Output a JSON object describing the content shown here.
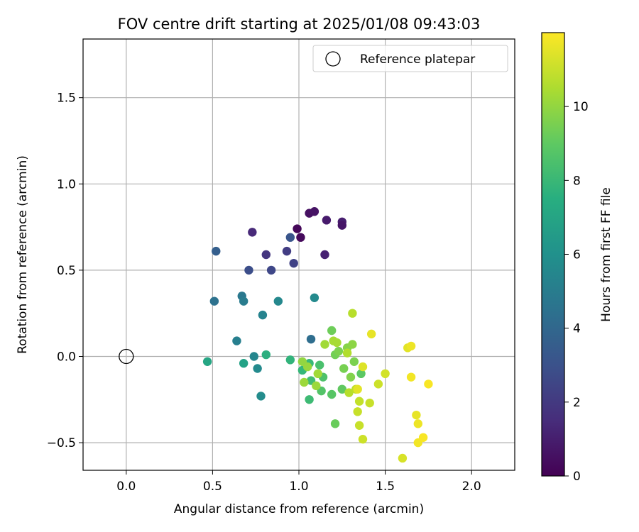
{
  "chart_data": {
    "type": "scatter",
    "title": "FOV centre drift starting at 2025/01/08 09:43:03",
    "xlabel": "Angular distance from reference (arcmin)",
    "ylabel": "Rotation from reference (arcmin)",
    "xlim": [
      -0.25,
      2.25
    ],
    "ylim": [
      -0.66,
      1.84
    ],
    "xticks": [
      0.0,
      0.5,
      1.0,
      1.5,
      2.0
    ],
    "xtick_labels": [
      "0.0",
      "0.5",
      "1.0",
      "1.5",
      "2.0"
    ],
    "yticks": [
      -0.5,
      0.0,
      0.5,
      1.0,
      1.5
    ],
    "ytick_labels": [
      "−0.5",
      "0.0",
      "0.5",
      "1.0",
      "1.5"
    ],
    "grid": true,
    "legend": {
      "position": "top-right",
      "entries": [
        "Reference platepar"
      ]
    },
    "reference_point": {
      "x": 0.0,
      "y": 0.0
    },
    "colorbar": {
      "label": "Hours from first FF file",
      "range": [
        0,
        12
      ],
      "ticks": [
        0,
        2,
        4,
        6,
        8,
        10
      ],
      "colormap": "viridis"
    },
    "points": [
      {
        "x": 0.99,
        "y": 0.74,
        "c": 0.2
      },
      {
        "x": 1.01,
        "y": 0.69,
        "c": 0.3
      },
      {
        "x": 1.06,
        "y": 0.83,
        "c": 0.5
      },
      {
        "x": 1.09,
        "y": 0.84,
        "c": 0.6
      },
      {
        "x": 1.16,
        "y": 0.79,
        "c": 0.9
      },
      {
        "x": 1.25,
        "y": 0.78,
        "c": 1.0
      },
      {
        "x": 1.25,
        "y": 0.76,
        "c": 0.7
      },
      {
        "x": 1.15,
        "y": 0.59,
        "c": 1.1
      },
      {
        "x": 0.73,
        "y": 0.72,
        "c": 1.4
      },
      {
        "x": 0.81,
        "y": 0.59,
        "c": 1.9
      },
      {
        "x": 0.93,
        "y": 0.61,
        "c": 2.2
      },
      {
        "x": 0.97,
        "y": 0.54,
        "c": 2.4
      },
      {
        "x": 0.84,
        "y": 0.5,
        "c": 2.6
      },
      {
        "x": 0.71,
        "y": 0.5,
        "c": 2.9
      },
      {
        "x": 0.95,
        "y": 0.69,
        "c": 3.2
      },
      {
        "x": 0.52,
        "y": 0.61,
        "c": 3.6
      },
      {
        "x": 1.07,
        "y": 0.1,
        "c": 4.3
      },
      {
        "x": 0.51,
        "y": 0.32,
        "c": 4.5
      },
      {
        "x": 0.67,
        "y": 0.35,
        "c": 4.8
      },
      {
        "x": 0.68,
        "y": 0.32,
        "c": 5.0
      },
      {
        "x": 0.64,
        "y": 0.09,
        "c": 5.2
      },
      {
        "x": 0.79,
        "y": 0.24,
        "c": 5.4
      },
      {
        "x": 0.74,
        "y": 0.0,
        "c": 5.5
      },
      {
        "x": 0.88,
        "y": 0.32,
        "c": 5.6
      },
      {
        "x": 0.76,
        "y": -0.07,
        "c": 5.7
      },
      {
        "x": 0.78,
        "y": -0.23,
        "c": 5.8
      },
      {
        "x": 1.09,
        "y": 0.34,
        "c": 5.7
      },
      {
        "x": 0.68,
        "y": -0.04,
        "c": 6.9
      },
      {
        "x": 0.47,
        "y": -0.03,
        "c": 7.1
      },
      {
        "x": 0.81,
        "y": 0.01,
        "c": 7.5
      },
      {
        "x": 0.95,
        "y": -0.02,
        "c": 7.8
      },
      {
        "x": 1.02,
        "y": -0.08,
        "c": 8.0
      },
      {
        "x": 1.06,
        "y": -0.04,
        "c": 8.1
      },
      {
        "x": 1.06,
        "y": -0.25,
        "c": 8.2
      },
      {
        "x": 1.07,
        "y": -0.14,
        "c": 8.3
      },
      {
        "x": 1.12,
        "y": -0.05,
        "c": 8.5
      },
      {
        "x": 1.14,
        "y": -0.12,
        "c": 8.6
      },
      {
        "x": 1.13,
        "y": -0.2,
        "c": 8.7
      },
      {
        "x": 1.19,
        "y": -0.22,
        "c": 8.8
      },
      {
        "x": 1.25,
        "y": -0.19,
        "c": 9.0
      },
      {
        "x": 1.36,
        "y": -0.1,
        "c": 8.9
      },
      {
        "x": 1.21,
        "y": -0.39,
        "c": 9.2
      },
      {
        "x": 1.19,
        "y": 0.15,
        "c": 9.3
      },
      {
        "x": 1.21,
        "y": 0.01,
        "c": 9.4
      },
      {
        "x": 1.26,
        "y": -0.07,
        "c": 9.5
      },
      {
        "x": 1.23,
        "y": 0.03,
        "c": 9.6
      },
      {
        "x": 1.3,
        "y": -0.12,
        "c": 9.7
      },
      {
        "x": 1.32,
        "y": -0.03,
        "c": 9.6
      },
      {
        "x": 1.28,
        "y": 0.05,
        "c": 9.8
      },
      {
        "x": 1.31,
        "y": 0.07,
        "c": 9.9
      },
      {
        "x": 1.02,
        "y": -0.03,
        "c": 10.0
      },
      {
        "x": 1.05,
        "y": -0.06,
        "c": 10.1
      },
      {
        "x": 1.03,
        "y": -0.15,
        "c": 10.2
      },
      {
        "x": 1.1,
        "y": -0.17,
        "c": 10.2
      },
      {
        "x": 1.11,
        "y": -0.1,
        "c": 10.3
      },
      {
        "x": 1.15,
        "y": 0.07,
        "c": 10.3
      },
      {
        "x": 1.2,
        "y": 0.09,
        "c": 10.4
      },
      {
        "x": 1.22,
        "y": 0.08,
        "c": 10.4
      },
      {
        "x": 1.28,
        "y": 0.02,
        "c": 10.6
      },
      {
        "x": 1.29,
        "y": -0.21,
        "c": 10.7
      },
      {
        "x": 1.31,
        "y": 0.25,
        "c": 10.7
      },
      {
        "x": 1.33,
        "y": -0.19,
        "c": 10.8
      },
      {
        "x": 1.35,
        "y": -0.26,
        "c": 10.9
      },
      {
        "x": 1.34,
        "y": -0.32,
        "c": 11.0
      },
      {
        "x": 1.35,
        "y": -0.4,
        "c": 11.0
      },
      {
        "x": 1.37,
        "y": -0.48,
        "c": 11.1
      },
      {
        "x": 1.41,
        "y": -0.27,
        "c": 11.0
      },
      {
        "x": 1.46,
        "y": -0.16,
        "c": 11.1
      },
      {
        "x": 1.5,
        "y": -0.1,
        "c": 11.2
      },
      {
        "x": 1.37,
        "y": -0.06,
        "c": 11.4
      },
      {
        "x": 1.42,
        "y": 0.13,
        "c": 11.6
      },
      {
        "x": 1.34,
        "y": -0.19,
        "c": 11.5
      },
      {
        "x": 1.6,
        "y": -0.59,
        "c": 11.3
      },
      {
        "x": 1.63,
        "y": 0.05,
        "c": 11.5
      },
      {
        "x": 1.65,
        "y": 0.06,
        "c": 11.7
      },
      {
        "x": 1.65,
        "y": -0.12,
        "c": 11.8
      },
      {
        "x": 1.68,
        "y": -0.34,
        "c": 11.6
      },
      {
        "x": 1.69,
        "y": -0.39,
        "c": 11.7
      },
      {
        "x": 1.69,
        "y": -0.5,
        "c": 11.8
      },
      {
        "x": 1.72,
        "y": -0.47,
        "c": 11.9
      },
      {
        "x": 1.75,
        "y": -0.16,
        "c": 11.9
      }
    ]
  }
}
